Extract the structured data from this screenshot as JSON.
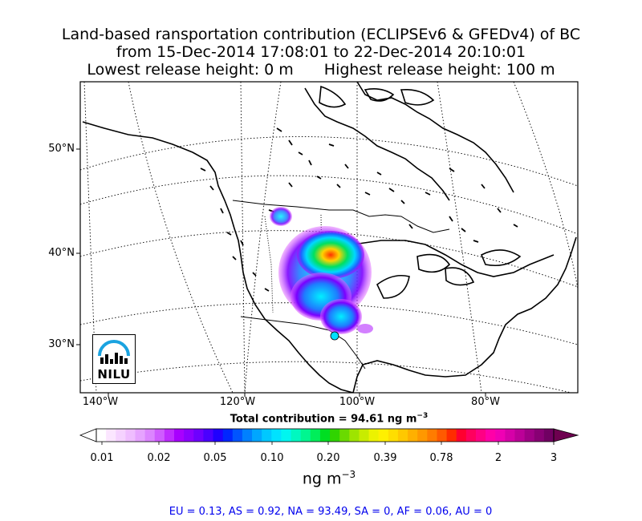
{
  "title": {
    "line1": "Land-based ransportation contribution (ECLIPSEv6 & GFEDv4) of BC",
    "line2": "from 15-Dec-2014 17:08:01 to 22-Dec-2014 20:10:01",
    "line3a": "Lowest release height: 0 m",
    "line3b": "Highest release height: 100 m"
  },
  "map": {
    "lat_labels": [
      "50°N",
      "40°N",
      "30°N"
    ],
    "lon_labels": [
      "140°W",
      "120°W",
      "100°W",
      "80°W"
    ],
    "logo_text": "NILU",
    "logo_color": "#1aa3e0"
  },
  "total_label": "Total contribution = 94.61 ng m",
  "total_sup": "−3",
  "colorbar": {
    "tick_labels": [
      "0.01",
      "0.02",
      "0.05",
      "0.10",
      "0.20",
      "0.39",
      "0.78",
      "2",
      "3"
    ],
    "unit": "ng m",
    "unit_sup": "−3"
  },
  "regions_text": "EU = 0.13,  AS = 0.92,  NA = 93.49,  SA = 0,  AF = 0.06,  AU = 0"
}
